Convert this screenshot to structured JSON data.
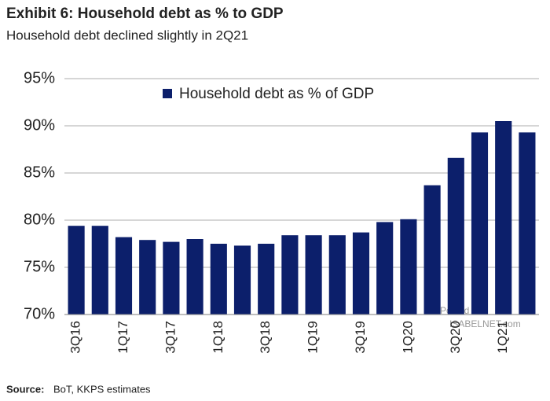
{
  "chart_data": {
    "type": "bar",
    "title": "Exhibit 6: Household debt as % to GDP",
    "subtitle": "Household debt declined slightly in 2Q21",
    "categories": [
      "3Q16",
      null,
      "1Q17",
      null,
      "3Q17",
      null,
      "1Q18",
      null,
      "3Q18",
      null,
      "1Q19",
      null,
      "3Q19",
      null,
      "1Q20",
      null,
      "3Q20",
      null,
      "1Q21",
      null
    ],
    "series": [
      {
        "name": "Household debt as % of GDP",
        "color": "#0c1f6b",
        "values": [
          79.4,
          79.4,
          78.2,
          77.9,
          77.7,
          78.0,
          77.5,
          77.3,
          77.5,
          78.4,
          78.4,
          78.4,
          78.7,
          79.8,
          80.1,
          83.7,
          86.6,
          89.3,
          90.5,
          89.3
        ]
      }
    ],
    "ylim": [
      70,
      95
    ],
    "yticks": [
      {
        "value": 70,
        "label": "70%"
      },
      {
        "value": 75,
        "label": "75%"
      },
      {
        "value": 80,
        "label": "80%"
      },
      {
        "value": 85,
        "label": "85%"
      },
      {
        "value": 90,
        "label": "90%"
      },
      {
        "value": 95,
        "label": "95%"
      }
    ],
    "grid": true,
    "source_label": "Source:",
    "source_text": "BoT, KKPS estimates",
    "watermark": [
      "Posted on",
      "ISABELNET.com"
    ]
  }
}
